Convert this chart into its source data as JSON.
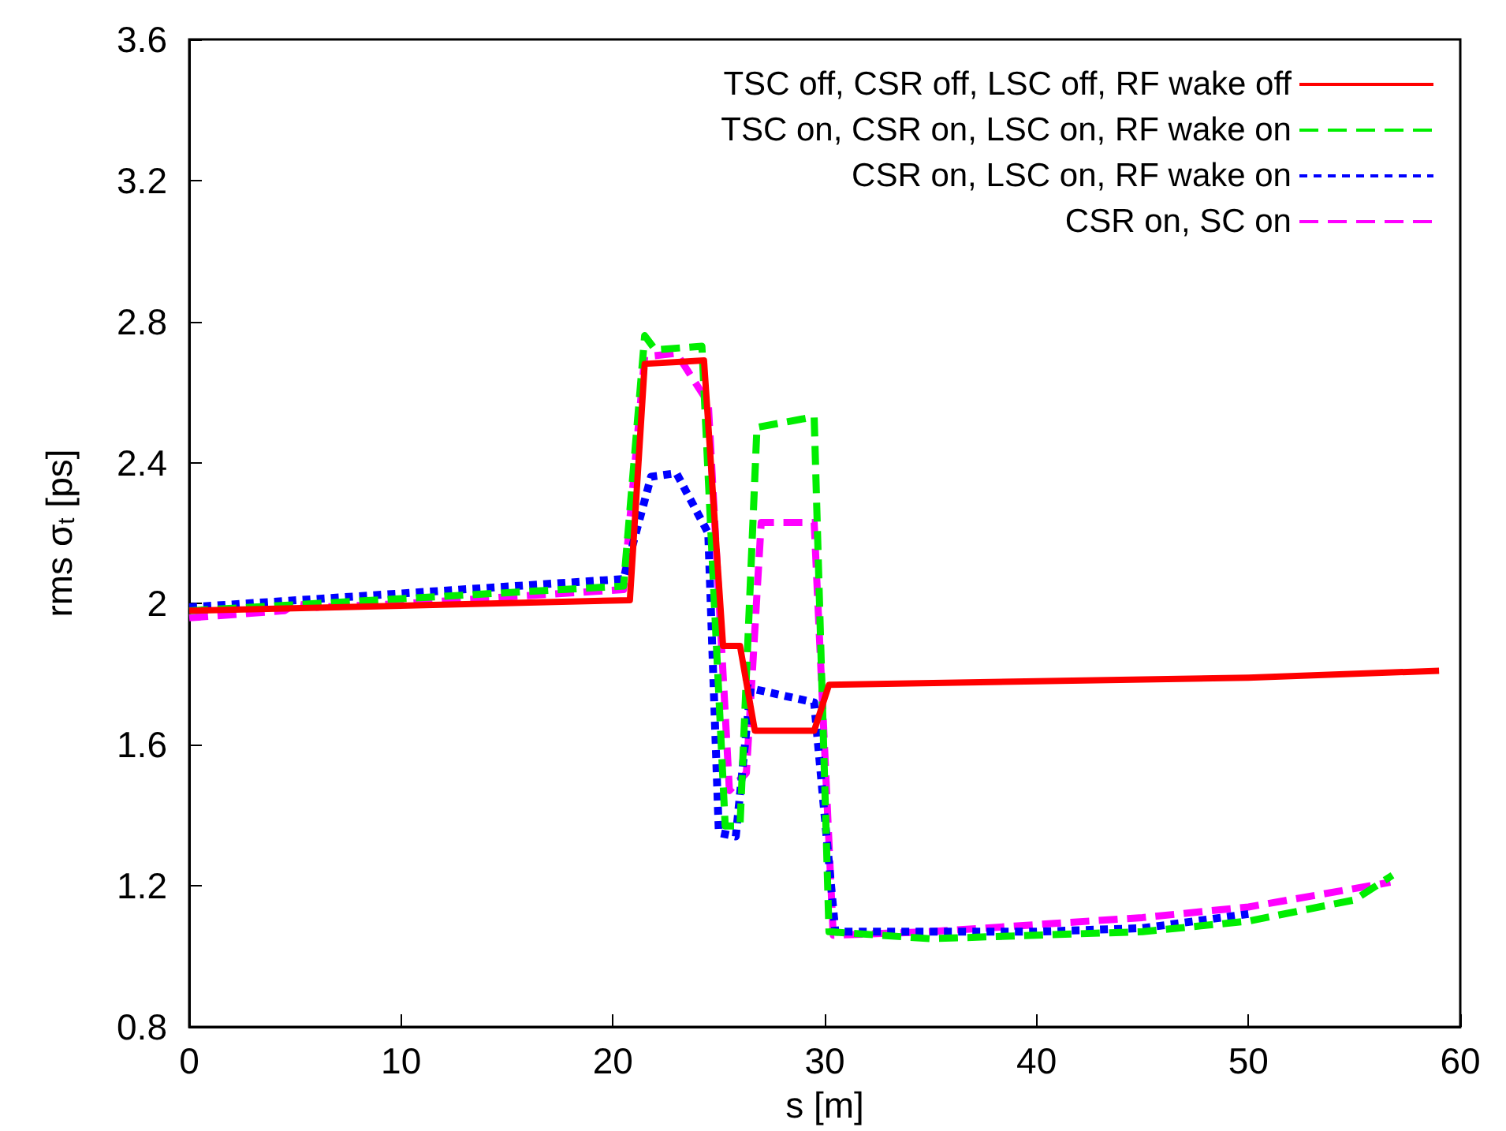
{
  "chart_data": {
    "type": "line",
    "xlabel": "s [m]",
    "ylabel": "rms σ$_{t}$ [ps]",
    "xlim": [
      0,
      60
    ],
    "xticks": [
      0,
      10,
      20,
      30,
      40,
      50,
      60
    ],
    "ylim": [
      0.8,
      3.6
    ],
    "yticks": [
      {
        "value": 0.8,
        "label": "0.8"
      },
      {
        "value": 1.2,
        "label": "1.2"
      },
      {
        "value": 1.6,
        "label": "1.6"
      },
      {
        "value": 2,
        "label": "2"
      },
      {
        "value": 2.4,
        "label": "2.4"
      },
      {
        "value": 2.8,
        "label": "2.8"
      },
      {
        "value": 3.2,
        "label": "3.2"
      },
      {
        "value": 3.6,
        "label": "3.6"
      }
    ],
    "grid": false,
    "legend": "top right",
    "marker": "none",
    "series": [
      {
        "name": "TSC off, CSR off, LSC off, RF wake off",
        "color": "#ff0000",
        "line_style": "solid",
        "x": [
          0,
          20.8,
          21.5,
          24.3,
          25.2,
          26,
          26.7,
          29.5,
          30.2,
          50,
          59
        ],
        "values": [
          1.98,
          2.01,
          2.68,
          2.69,
          1.88,
          1.88,
          1.64,
          1.64,
          1.77,
          1.79,
          1.81
        ]
      },
      {
        "name": "TSC on, CSR on, LSC on, RF wake on",
        "color": "#00ee00",
        "line_style": "dashed",
        "x": [
          0,
          20.5,
          21.5,
          22,
          24.2,
          25.3,
          26,
          26.8,
          29.5,
          30.2,
          35,
          45,
          50,
          55,
          56.8
        ],
        "values": [
          1.98,
          2.05,
          2.76,
          2.72,
          2.73,
          1.37,
          1.37,
          2.5,
          2.53,
          1.07,
          1.05,
          1.07,
          1.1,
          1.16,
          1.23
        ]
      },
      {
        "name": "CSR on, LSC on, RF wake on",
        "color": "#0000ff",
        "line_style": "dotted",
        "x": [
          0,
          20.5,
          21.8,
          23,
          24.5,
          25,
          25.8,
          26.5,
          29.5,
          30.5,
          40,
          45,
          50
        ],
        "values": [
          1.99,
          2.07,
          2.36,
          2.37,
          2.2,
          1.35,
          1.34,
          1.76,
          1.72,
          1.07,
          1.07,
          1.08,
          1.12
        ]
      },
      {
        "name": "CSR on, SC on",
        "color": "#ff00ff",
        "line_style": "dashed",
        "x": [
          0,
          4.5,
          5,
          6,
          10,
          20.5,
          21.5,
          23,
          24.5,
          25.5,
          26.3,
          27,
          29.5,
          30.4,
          35,
          40,
          45,
          50,
          56.7
        ],
        "values": [
          1.96,
          1.98,
          2,
          1.99,
          2,
          2.04,
          2.7,
          2.71,
          2.57,
          1.47,
          1.52,
          2.23,
          2.23,
          1.06,
          1.07,
          1.09,
          1.11,
          1.14,
          1.21
        ]
      }
    ]
  }
}
